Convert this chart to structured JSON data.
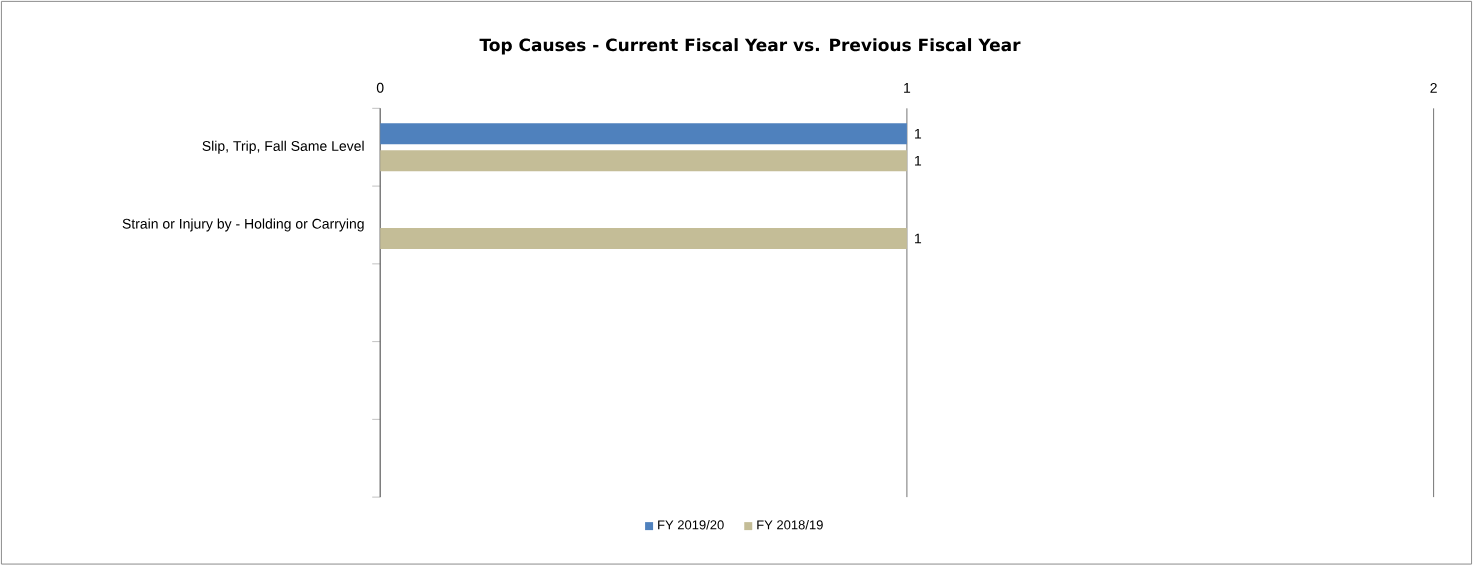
{
  "chart_data": {
    "type": "bar",
    "orientation": "horizontal",
    "title": "Top Causes - Current Fiscal Year vs. Previous Fiscal Year",
    "categories": [
      "Slip, Trip, Fall Same Level",
      "Strain or Injury by - Holding or Carrying",
      null,
      null,
      null
    ],
    "series": [
      {
        "name": "FY 2019/20",
        "color": "#4f81bd",
        "values": [
          1,
          null,
          null,
          null,
          null
        ]
      },
      {
        "name": "FY 2018/19",
        "color": "#c4bd97",
        "values": [
          1,
          1,
          null,
          null,
          null
        ]
      }
    ],
    "xlim": [
      0,
      2
    ],
    "xticks": [
      0,
      1,
      2
    ],
    "grid": "x",
    "data_labels": true,
    "legend": "bottom"
  }
}
